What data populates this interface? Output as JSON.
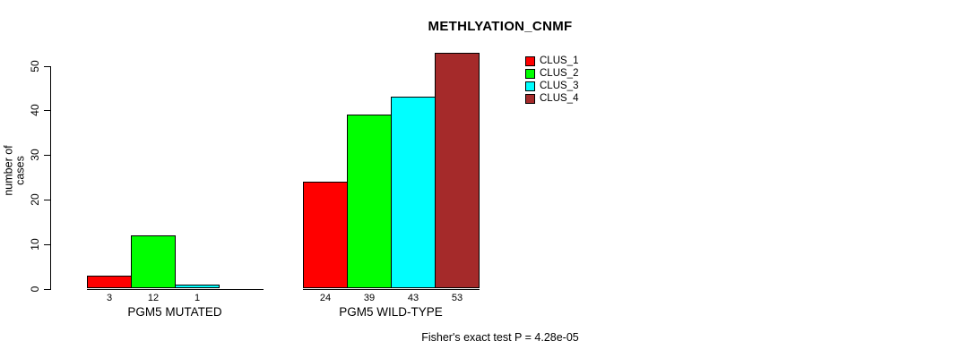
{
  "chart_data": {
    "type": "bar",
    "title": "METHLYATION_CNMF",
    "ylabel": "number of cases",
    "xlabel": "",
    "ylim": [
      0,
      50
    ],
    "yticks": [
      0,
      10,
      20,
      30,
      40,
      50
    ],
    "grid": false,
    "legend_position": "top-right",
    "categories": [
      "PGM5 MUTATED",
      "PGM5 WILD-TYPE"
    ],
    "series": [
      {
        "name": "CLUS_1",
        "color": "#ff0000",
        "values": [
          3,
          24
        ]
      },
      {
        "name": "CLUS_2",
        "color": "#00ff00",
        "values": [
          12,
          39
        ]
      },
      {
        "name": "CLUS_3",
        "color": "#00ffff",
        "values": [
          1,
          43
        ]
      },
      {
        "name": "CLUS_4",
        "color": "#a52a2a",
        "values": [
          0,
          53
        ]
      }
    ],
    "bar_value_labels": [
      [
        "3",
        "12",
        "1",
        ""
      ],
      [
        "24",
        "39",
        "43",
        "53"
      ]
    ],
    "annotation": "Fisher's exact test P = 4.28e-05",
    "background": "#ffffff",
    "axis_color": "#000000"
  }
}
